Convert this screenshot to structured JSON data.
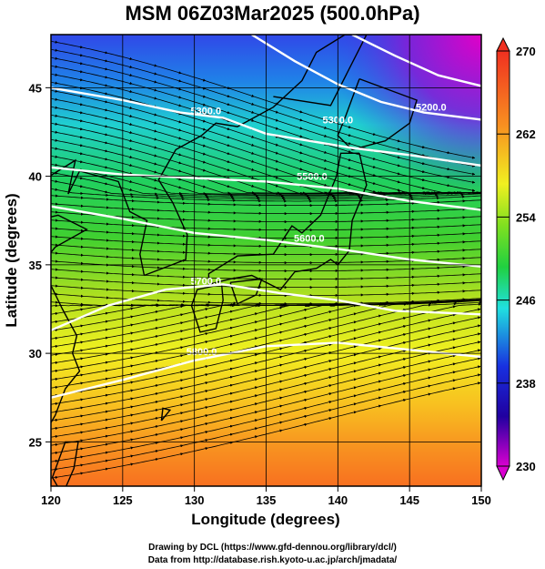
{
  "title": "MSM 06Z03Mar2025 (500.0hPa)",
  "map": {
    "xlabel": "Longitude (degrees)",
    "ylabel": "Latitude  (degrees)",
    "lon_range": [
      120,
      150
    ],
    "lat_range": [
      22.5,
      48
    ],
    "lon_ticks": [
      120,
      125,
      130,
      135,
      140,
      145,
      150
    ],
    "lon_tick_labels": [
      "120",
      "125",
      "130",
      "135",
      "140",
      "145",
      "150"
    ],
    "lat_ticks": [
      25,
      30,
      35,
      40,
      45
    ],
    "lat_tick_labels": [
      "25",
      "30",
      "35",
      "40",
      "45"
    ],
    "grid": true,
    "contours": [
      {
        "label": "5200.0",
        "lon": 146.5,
        "lat": 43.7
      },
      {
        "label": "5300.0",
        "lon": 140.0,
        "lat": 43.0
      },
      {
        "label": "5300.0",
        "lon": 130.8,
        "lat": 43.5
      },
      {
        "label": "5500.0",
        "lon": 138.2,
        "lat": 39.8
      },
      {
        "label": "5600.0",
        "lon": 138.0,
        "lat": 36.3
      },
      {
        "label": "5700.0",
        "lon": 130.8,
        "lat": 33.9
      },
      {
        "label": "5800.0",
        "lon": 130.5,
        "lat": 29.9
      }
    ]
  },
  "colorbar": {
    "min": 230,
    "max": 270,
    "tick_labels": [
      "270",
      "262",
      "254",
      "246",
      "238",
      "230"
    ],
    "tick_values": [
      270,
      262,
      254,
      246,
      238,
      230
    ]
  },
  "colors": {
    "magenta": "#d800d0",
    "blue": "#1830e0",
    "cyan": "#20e0e0",
    "green": "#20d040",
    "yellow": "#f0f020",
    "orange": "#f89020",
    "red": "#f03020",
    "contour": "#ffffff",
    "streamline": "#000000"
  },
  "credits": {
    "line1": "Drawing by DCL (https://www.gfd-dennou.org/library/dcl/)",
    "line2": "Data from http://database.rish.kyoto-u.ac.jp/arch/jmadata/"
  }
}
